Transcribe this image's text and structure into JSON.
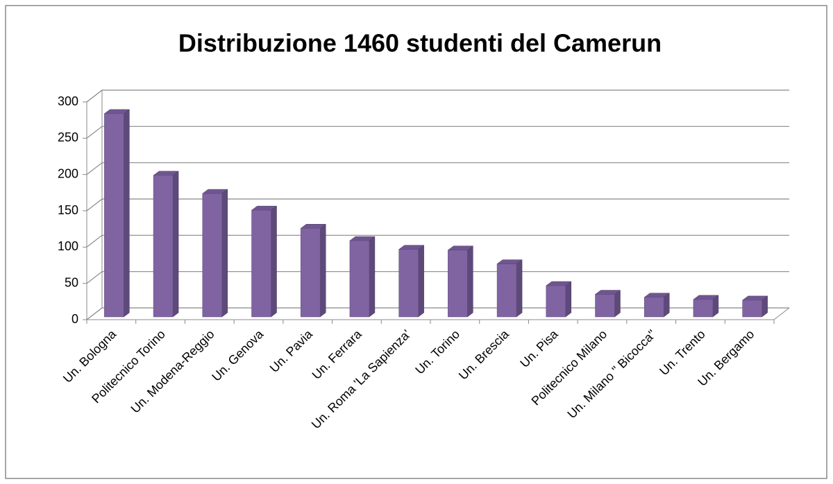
{
  "chart_data": {
    "type": "bar3d",
    "title": "Distribuzione 1460 studenti del Camerun",
    "categories": [
      "Un. Bologna",
      "Politecnico Torino",
      "Un. Modena-Reggio",
      "Un. Genova",
      "Un. Pavia",
      "Un. Ferrara",
      "Un. Roma 'La Sapienza'",
      "Un. Torino",
      "Un. Brescia",
      "Un. Pisa",
      "Politecnico Milano",
      "Un. Milano \" Bicocca\"",
      "Un. Trento",
      "Un. Bergamo"
    ],
    "values": [
      280,
      195,
      170,
      147,
      122,
      105,
      93,
      92,
      73,
      43,
      31,
      27,
      24,
      23
    ],
    "color": "#8064a2",
    "ylim": [
      0,
      300
    ],
    "yticks": [
      0,
      50,
      100,
      150,
      200,
      250,
      300
    ],
    "grid": true
  }
}
